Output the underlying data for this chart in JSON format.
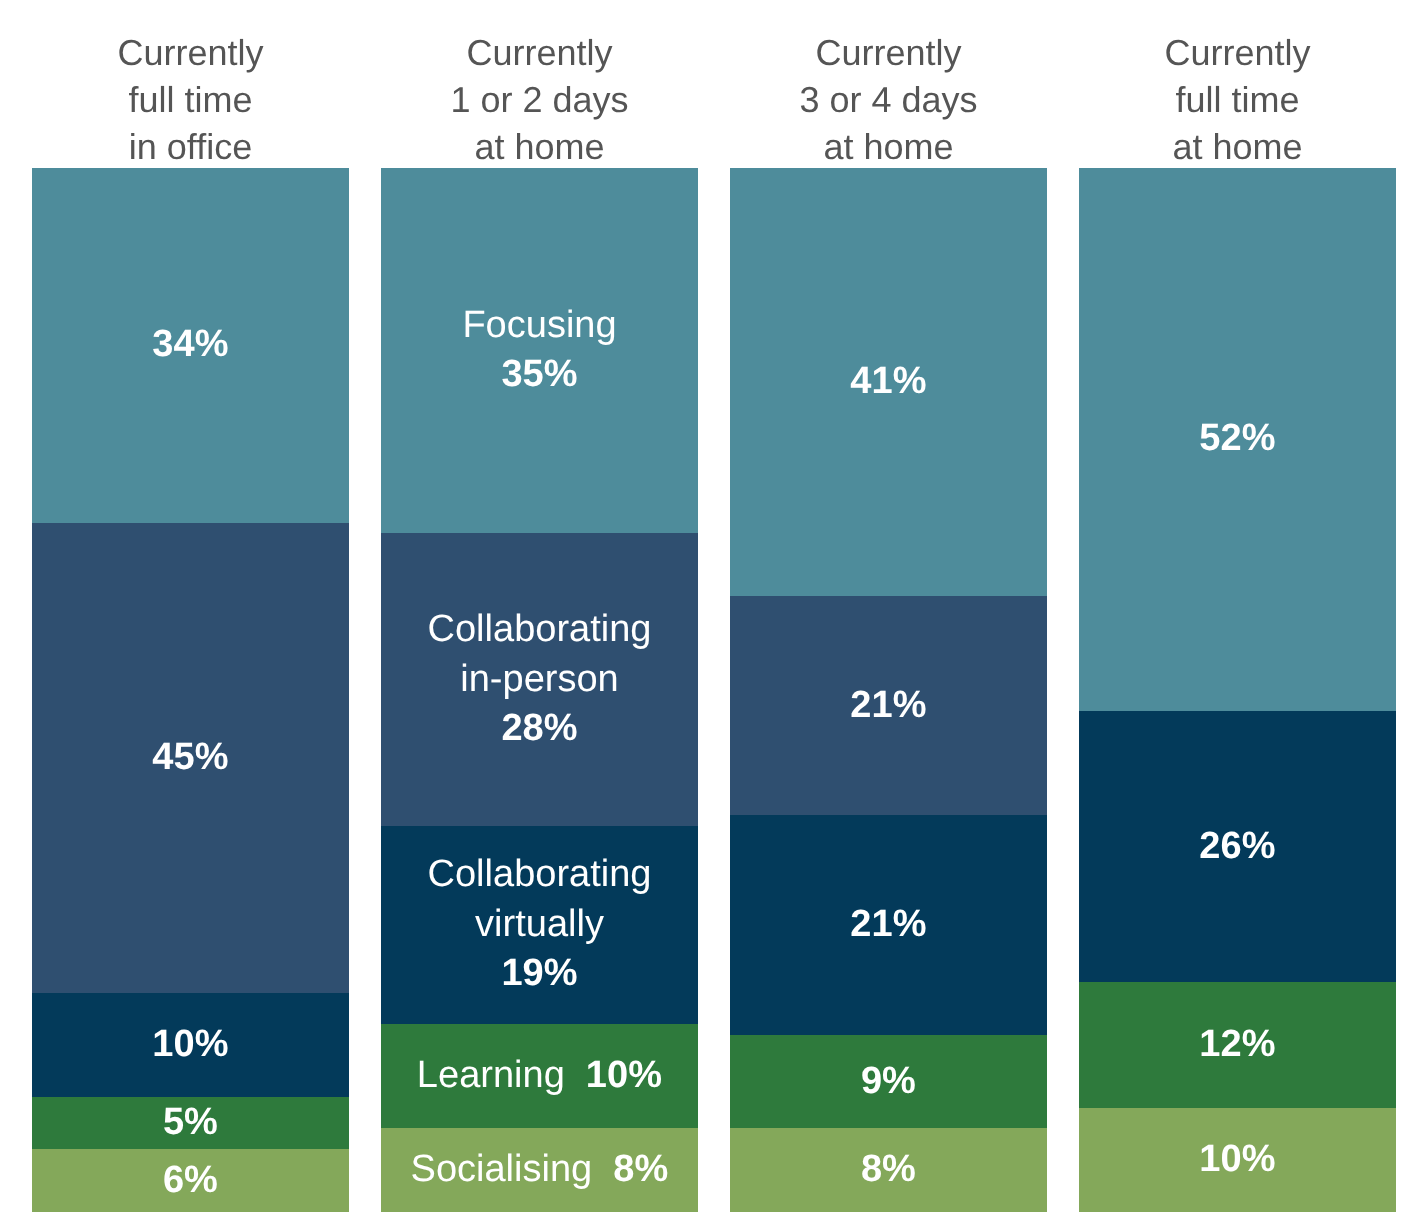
{
  "chart_data": {
    "type": "bar",
    "stacked": true,
    "categories": [
      "Currently\nfull time\nin office",
      "Currently\n1 or 2 days\nat home",
      "Currently\n3 or 4 days\nat home",
      "Currently\nfull time\nat home"
    ],
    "series": [
      {
        "name": "Socialising",
        "color": "#84a85a",
        "values": [
          6,
          8,
          8,
          10
        ],
        "value_labels": [
          "6%",
          "8%",
          "8%",
          "10%"
        ]
      },
      {
        "name": "Learning",
        "color": "#2e7a3c",
        "values": [
          5,
          10,
          9,
          12
        ],
        "value_labels": [
          "5%",
          "10%",
          "9%",
          "12%"
        ]
      },
      {
        "name": "Collaborating virtually",
        "color": "#033a5a",
        "values": [
          10,
          19,
          21,
          26
        ],
        "value_labels": [
          "10%",
          "19%",
          "21%",
          "26%"
        ]
      },
      {
        "name": "Collaborating in-person",
        "color": "#2f4f70",
        "values": [
          45,
          28,
          21,
          null
        ],
        "value_labels": [
          "45%",
          "28%",
          "21%",
          null
        ]
      },
      {
        "name": "Focusing",
        "color": "#4e8c9b",
        "values": [
          34,
          35,
          41,
          52
        ],
        "value_labels": [
          "34%",
          "35%",
          "41%",
          "52%"
        ]
      }
    ],
    "ylim": [
      0,
      100
    ],
    "tick_labels": "x",
    "legend": false,
    "grid": false
  }
}
